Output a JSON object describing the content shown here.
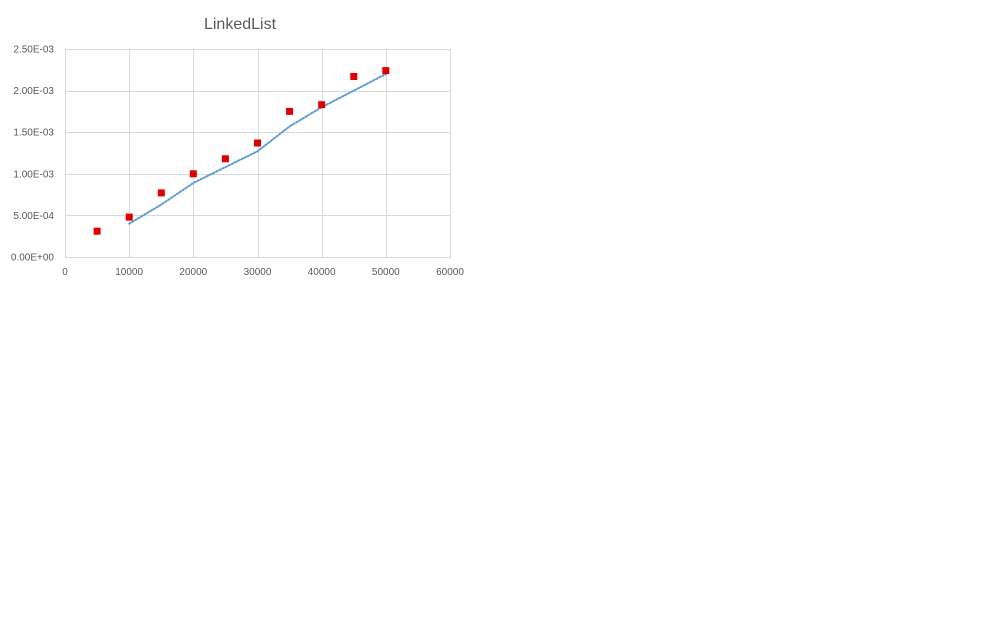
{
  "chart_data": {
    "type": "scatter",
    "title": "LinkedList",
    "xlabel": "",
    "ylabel": "",
    "xlim": [
      0,
      60000
    ],
    "ylim": [
      0,
      0.0025
    ],
    "x_ticks": [
      0,
      10000,
      20000,
      30000,
      40000,
      50000,
      60000
    ],
    "x_tick_labels": [
      "0",
      "10000",
      "20000",
      "30000",
      "40000",
      "50000",
      "60000"
    ],
    "y_ticks": [
      0,
      0.0005,
      0.001,
      0.0015,
      0.002,
      0.0025
    ],
    "y_tick_labels": [
      "0.00E+00",
      "5.00E-04",
      "1.00E-03",
      "1.50E-03",
      "2.00E-03",
      "2.50E-03"
    ],
    "grid": true,
    "legend": "none",
    "series": [
      {
        "marker": "square",
        "color": "#e00000",
        "x": [
          5000,
          10000,
          15000,
          20000,
          25000,
          30000,
          35000,
          40000,
          45000,
          50000
        ],
        "y": [
          0.00031,
          0.00048,
          0.00077,
          0.001,
          0.00118,
          0.00137,
          0.00175,
          0.00183,
          0.00217,
          0.00224
        ]
      }
    ],
    "trendline": {
      "style": "dotted",
      "color": "#5b9bd5",
      "x": [
        10000,
        15000,
        20000,
        25000,
        30000,
        35000,
        40000,
        45000,
        50000
      ],
      "y": [
        0.0004,
        0.00063,
        0.00089,
        0.00108,
        0.00127,
        0.00157,
        0.0018,
        0.002,
        0.0022
      ]
    }
  }
}
